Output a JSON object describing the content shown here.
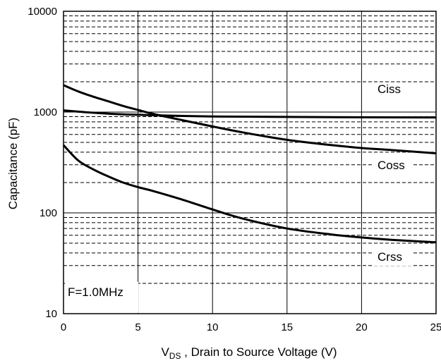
{
  "chart_data": {
    "type": "line",
    "xlabel_main": "V",
    "xlabel_sub": "DS",
    "xlabel_rest": " , Drain to Source Voltage (V)",
    "ylabel": "Capacitance (pF)",
    "xlim": [
      0,
      25
    ],
    "ylim": [
      10,
      10000
    ],
    "yscale": "log",
    "x_ticks": [
      "0",
      "5",
      "10",
      "15",
      "20",
      "25"
    ],
    "y_ticks": [
      "10",
      "100",
      "1000",
      "10000"
    ],
    "grid": true,
    "annotation": "F=1.0MHz",
    "series": [
      {
        "name": "Ciss",
        "x": [
          0,
          1,
          2,
          3,
          4,
          5,
          6,
          8,
          10,
          12,
          15,
          20,
          25
        ],
        "y": [
          1040,
          1010,
          985,
          965,
          950,
          940,
          930,
          915,
          905,
          900,
          895,
          888,
          885
        ]
      },
      {
        "name": "Coss",
        "x": [
          0,
          1,
          2,
          3,
          4,
          5,
          6,
          8,
          10,
          12,
          15,
          18,
          20,
          22,
          25
        ],
        "y": [
          1850,
          1600,
          1420,
          1280,
          1150,
          1050,
          960,
          830,
          720,
          630,
          530,
          470,
          440,
          420,
          390
        ]
      },
      {
        "name": "Crss",
        "x": [
          0,
          1,
          2,
          3,
          4,
          5,
          6,
          8,
          10,
          12,
          15,
          18,
          20,
          22,
          25
        ],
        "y": [
          470,
          330,
          270,
          230,
          200,
          180,
          165,
          135,
          108,
          88,
          70,
          61,
          57,
          54,
          51
        ]
      }
    ]
  }
}
